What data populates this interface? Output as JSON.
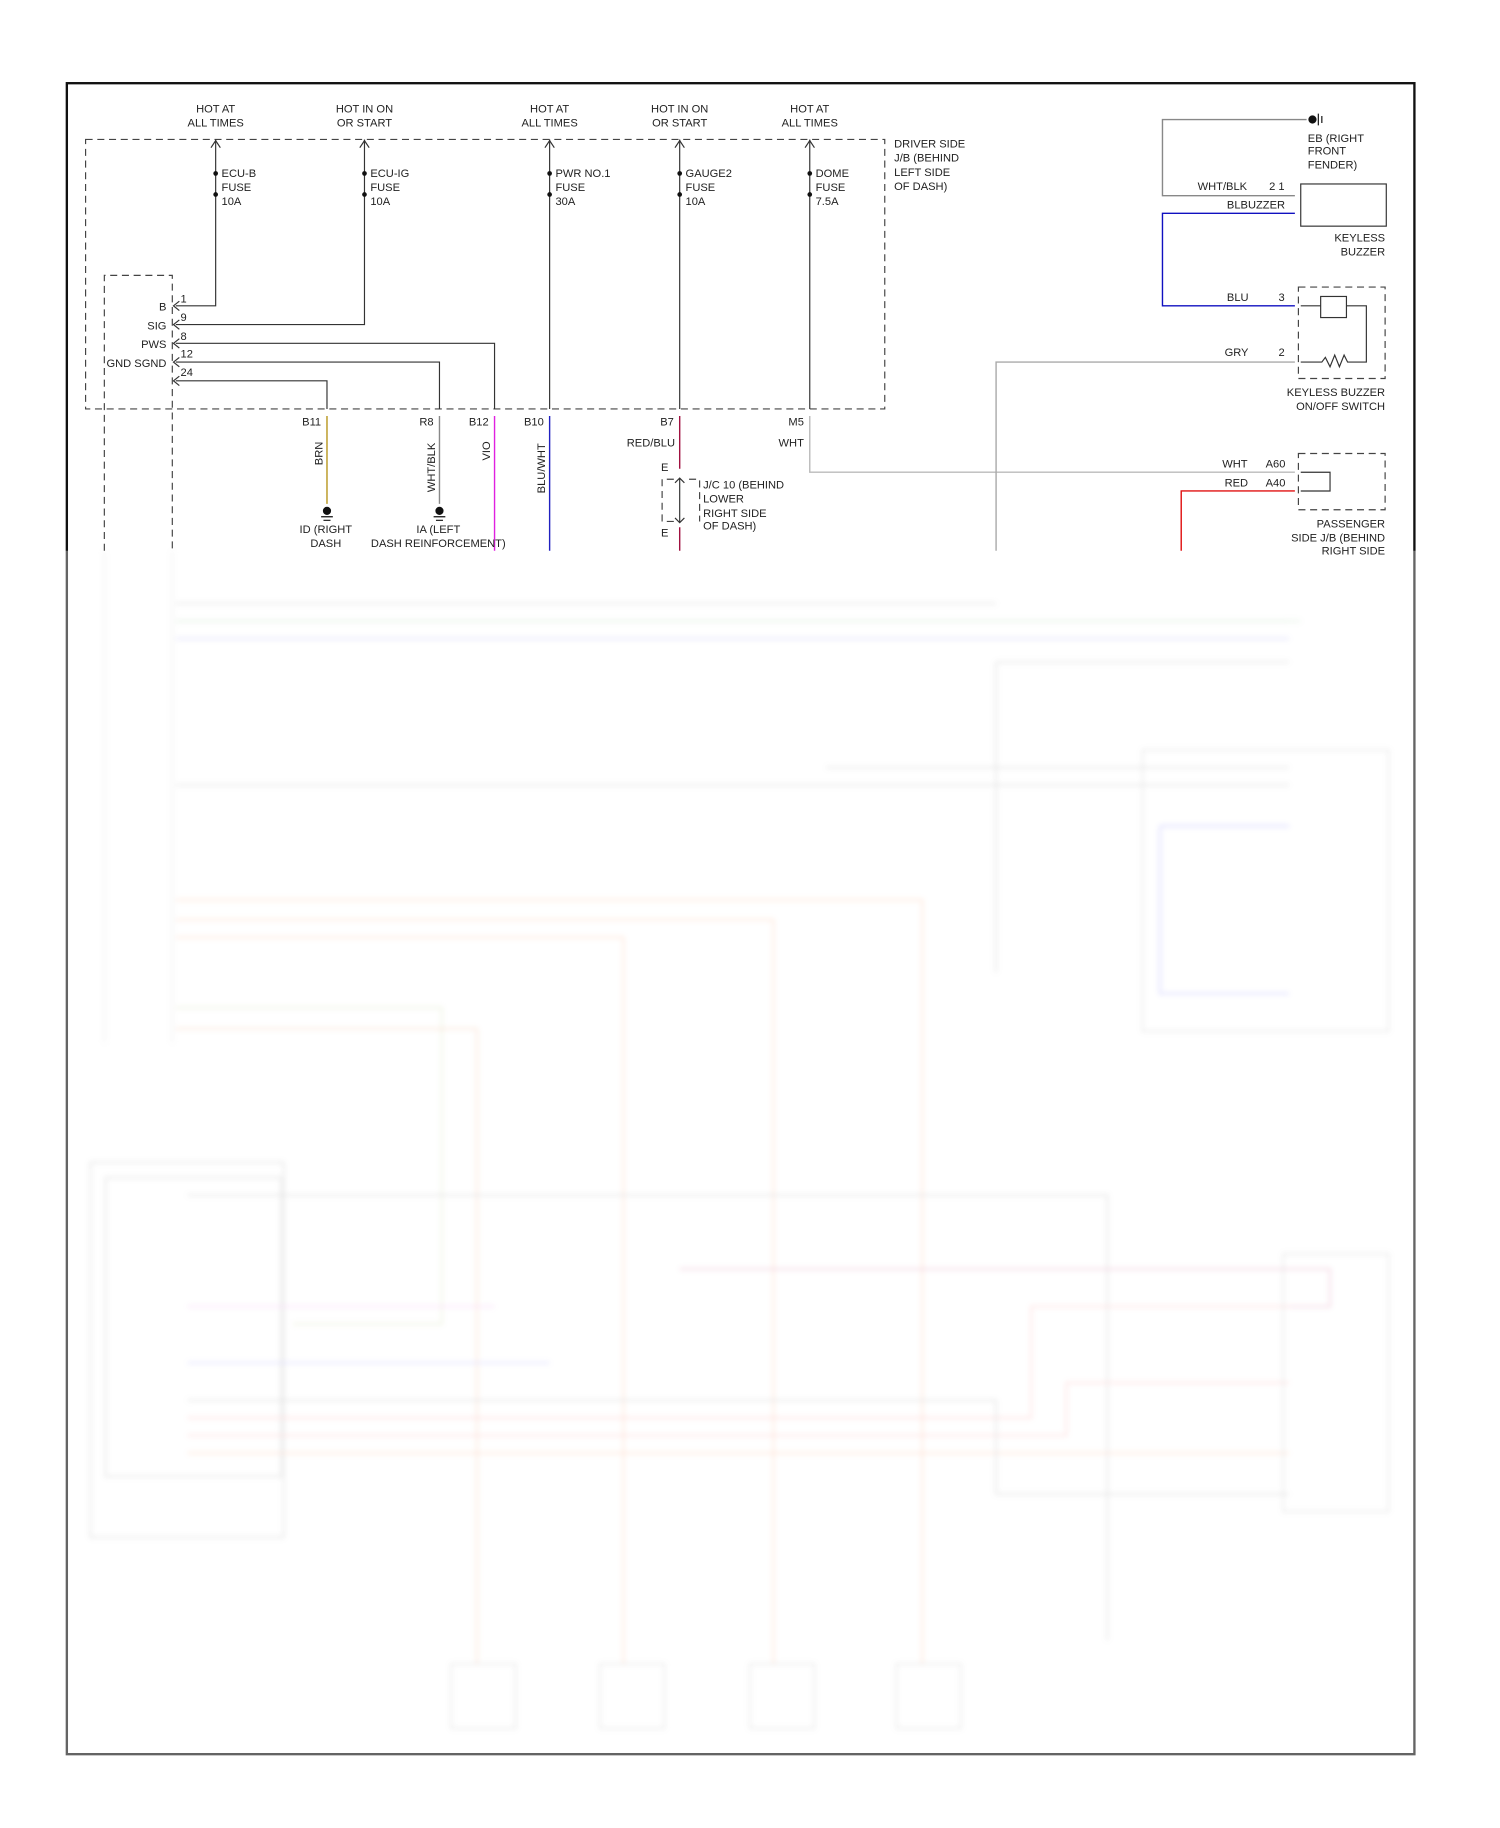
{
  "power_labels": [
    {
      "l1": "HOT AT",
      "l2": "ALL TIMES"
    },
    {
      "l1": "HOT IN ON",
      "l2": "OR START"
    },
    {
      "l1": "HOT AT",
      "l2": "ALL TIMES"
    },
    {
      "l1": "HOT IN ON",
      "l2": "OR START"
    },
    {
      "l1": "HOT AT",
      "l2": "ALL TIMES"
    }
  ],
  "fuses": [
    {
      "name": "ECU-B",
      "type": "FUSE",
      "rating": "10A"
    },
    {
      "name": "ECU-IG",
      "type": "FUSE",
      "rating": "10A"
    },
    {
      "name": "PWR NO.1",
      "type": "FUSE",
      "rating": "30A"
    },
    {
      "name": "GAUGE2",
      "type": "FUSE",
      "rating": "10A"
    },
    {
      "name": "DOME",
      "type": "FUSE",
      "rating": "7.5A"
    }
  ],
  "driver_jb": {
    "l1": "DRIVER SIDE",
    "l2": "J/B (BEHIND",
    "l3": "LEFT SIDE",
    "l4": "OF DASH)"
  },
  "module_pins": [
    {
      "name": "B",
      "pin": "1"
    },
    {
      "name": "SIG",
      "pin": "9"
    },
    {
      "name": "PWS",
      "pin": "8"
    },
    {
      "name": "GND SGND",
      "pin": "12"
    },
    {
      "name": "",
      "pin": "24"
    }
  ],
  "connectors": [
    "B11",
    "R8",
    "B12",
    "B10",
    "B7",
    "M5"
  ],
  "wires": {
    "brn": "BRN",
    "whtblk": "WHT/BLK",
    "vio": "VIO",
    "bluwht": "BLU/WHT",
    "redblu": "RED/BLU",
    "wht": "WHT"
  },
  "grounds": {
    "id": {
      "l1": "ID (RIGHT",
      "l2": "DASH"
    },
    "ia": {
      "l1": "IA (LEFT",
      "l2": "DASH REINFORCEMENT)"
    },
    "eb": {
      "l1": "EB (RIGHT",
      "l2": "FRONT",
      "l3": "FENDER)"
    }
  },
  "jc10": {
    "top": "E",
    "bottom": "E",
    "l1": "J/C 10 (BEHIND",
    "l2": "LOWER",
    "l3": "RIGHT SIDE",
    "l4": "OF DASH)"
  },
  "keyless_buzzer": {
    "wire1": "WHT/BLK",
    "pins": "2 1",
    "wire2": "BLBUZZER",
    "l1": "KEYLESS",
    "l2": "BUZZER"
  },
  "buzzer_switch": {
    "wire1": "BLU",
    "pin1": "3",
    "wire2": "GRY",
    "pin2": "2",
    "l1": "KEYLESS BUZZER",
    "l2": "ON/OFF SWITCH"
  },
  "passenger_jb": {
    "wire1": "WHT",
    "pin1": "A60",
    "wire2": "RED",
    "pin2": "A40",
    "l1": "PASSENGER",
    "l2": "SIDE J/B (BEHIND",
    "l3": "RIGHT SIDE"
  },
  "colors": {
    "brn": "#b8961e",
    "vio": "#e020e0",
    "blu": "#2020c0",
    "redblu": "#a01040",
    "red": "#e01010",
    "gry": "#999999",
    "wht": "#bbbbbb"
  }
}
